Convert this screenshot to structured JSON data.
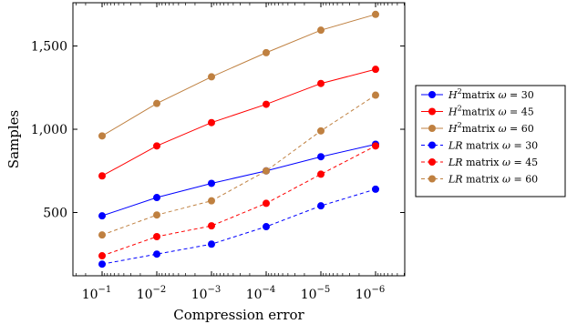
{
  "chart_data": {
    "type": "line",
    "xscale": "log",
    "xreversed": true,
    "x": [
      0.1,
      0.01,
      0.001,
      0.0001,
      1e-05,
      1e-06
    ],
    "x_tick_labels": [
      "10",
      "10",
      "10",
      "10",
      "10",
      "10"
    ],
    "x_tick_exponents": [
      "−1",
      "−2",
      "−3",
      "−4",
      "−5",
      "−6"
    ],
    "xlabel": "Compression error",
    "ylabel": "Samples",
    "ylim": [
      120,
      1760
    ],
    "y_ticks": [
      500,
      1000,
      1500
    ],
    "y_tick_labels": [
      "500",
      "1,000",
      "1,500"
    ],
    "grid": false,
    "legend_position": "right",
    "series": [
      {
        "name": "matrix",
        "legend_prefix": "H",
        "legend_sup": "2",
        "omega": "30",
        "color": "#0000ff",
        "dashed": false,
        "values": [
          480,
          590,
          675,
          750,
          835,
          910
        ]
      },
      {
        "name": "matrix",
        "legend_prefix": "H",
        "legend_sup": "2",
        "omega": "45",
        "color": "#ff0000",
        "dashed": false,
        "values": [
          720,
          900,
          1040,
          1150,
          1275,
          1360
        ]
      },
      {
        "name": "matrix",
        "legend_prefix": "H",
        "legend_sup": "2",
        "omega": "60",
        "color": "#bf8040",
        "dashed": false,
        "values": [
          960,
          1155,
          1315,
          1460,
          1595,
          1690
        ]
      },
      {
        "name": "matrix",
        "legend_prefix": "LR",
        "legend_sup": "",
        "omega": "30",
        "color": "#0000ff",
        "dashed": true,
        "values": [
          190,
          250,
          310,
          415,
          540,
          640
        ]
      },
      {
        "name": "matrix",
        "legend_prefix": "LR",
        "legend_sup": "",
        "omega": "45",
        "color": "#ff0000",
        "dashed": true,
        "values": [
          240,
          355,
          420,
          555,
          730,
          900
        ]
      },
      {
        "name": "matrix",
        "legend_prefix": "LR",
        "legend_sup": "",
        "omega": "60",
        "color": "#bf8040",
        "dashed": true,
        "values": [
          365,
          485,
          570,
          750,
          990,
          1205
        ]
      }
    ]
  }
}
